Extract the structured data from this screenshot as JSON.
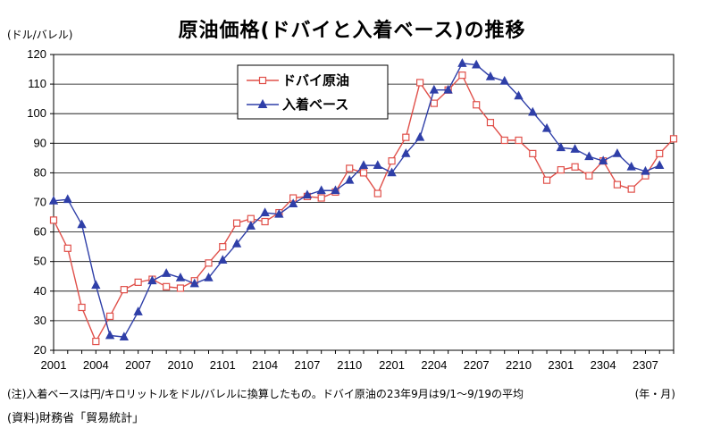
{
  "page": {
    "title": "原油価格(ドバイと入着ベース)の推移",
    "unit": "(ドル/バレル)",
    "note": "(注)入着ベースは円/キロリットルをドル/バレルに換算したもの。ドバイ原油の23年9月は9/1～9/19の平均",
    "x_unit": "(年・月)",
    "source": "(資料)財務省「貿易統計」"
  },
  "chart_data": {
    "type": "line",
    "title": "原油価格(ドバイと入着ベース)の推移",
    "ylabel": "(ドル/バレル)",
    "xlabel": "(年・月)",
    "ylim": [
      20,
      120
    ],
    "yticks": [
      20,
      30,
      40,
      50,
      60,
      70,
      80,
      90,
      100,
      110,
      120
    ],
    "grid": true,
    "legend": "top-center",
    "x": [
      "2001",
      "2002",
      "2003",
      "2004",
      "2005",
      "2006",
      "2007",
      "2008",
      "2009",
      "2010",
      "2011",
      "2012",
      "2101",
      "2102",
      "2103",
      "2104",
      "2105",
      "2106",
      "2107",
      "2108",
      "2109",
      "2110",
      "2111",
      "2112",
      "2201",
      "2202",
      "2203",
      "2204",
      "2205",
      "2206",
      "2207",
      "2208",
      "2209",
      "2210",
      "2211",
      "2212",
      "2301",
      "2302",
      "2303",
      "2304",
      "2305",
      "2306",
      "2307",
      "2308",
      "2309"
    ],
    "xtick_labels": [
      "2001",
      "2004",
      "2007",
      "2010",
      "2101",
      "2104",
      "2107",
      "2110",
      "2201",
      "2204",
      "2207",
      "2210",
      "2301",
      "2304",
      "2307"
    ],
    "series": [
      {
        "name": "ドバイ原油",
        "color": "#e0504a",
        "marker": "open-square",
        "values": [
          64,
          54.5,
          34.5,
          23,
          31.5,
          40.5,
          43,
          44,
          41.5,
          41,
          43.5,
          49.5,
          55,
          63,
          64.5,
          63.5,
          66.5,
          71.5,
          72,
          71.5,
          73.5,
          81.5,
          80,
          73,
          84,
          92,
          110.5,
          103.5,
          108,
          113,
          103,
          97,
          91,
          91,
          86.5,
          77.5,
          81,
          82,
          79,
          84,
          76,
          74.5,
          79,
          86.5,
          91.5
        ]
      },
      {
        "name": "入着ベース",
        "color": "#2f3fa8",
        "marker": "filled-triangle",
        "values": [
          70.5,
          71,
          62.5,
          42,
          25,
          24.5,
          33,
          43.5,
          46,
          44.5,
          42.5,
          44.5,
          50.5,
          56,
          62,
          66.5,
          66,
          69.5,
          72.5,
          74,
          74,
          77.5,
          82.5,
          82.5,
          80,
          86.5,
          92,
          108,
          108,
          117,
          116.5,
          112.5,
          111,
          106,
          100.5,
          95,
          88.5,
          88,
          85.5,
          84,
          86.5,
          82,
          80.5,
          82.5,
          null
        ]
      }
    ]
  }
}
